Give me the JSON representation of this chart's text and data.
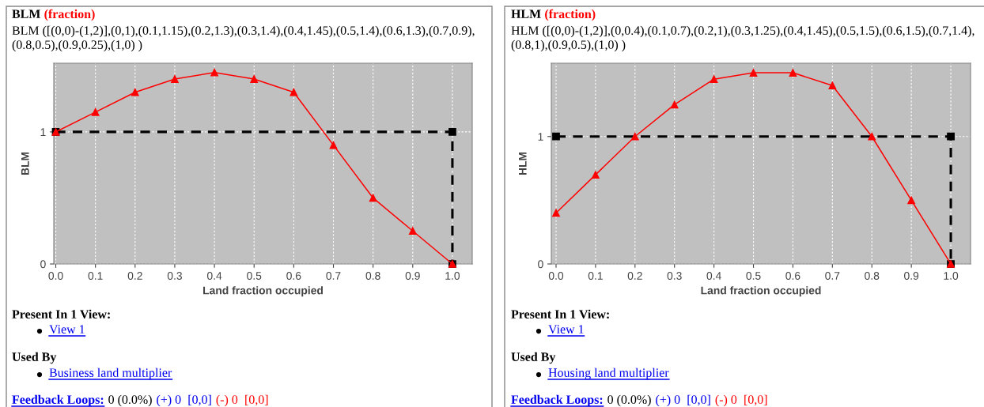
{
  "chart_data": [
    {
      "type": "line",
      "title": "BLM",
      "subtitle": "(fraction)",
      "xlabel": "Land fraction occupied",
      "ylabel": "BLM",
      "series": [
        {
          "color": "#000000",
          "x": [
            0,
            1,
            1
          ],
          "values": [
            1,
            1,
            0
          ],
          "marker": "square",
          "line_style": "dashed"
        },
        {
          "color": "#ff0000",
          "x": [
            0,
            0.1,
            0.2,
            0.3,
            0.4,
            0.5,
            0.6,
            0.7,
            0.8,
            0.9,
            1
          ],
          "values": [
            1,
            1.15,
            1.3,
            1.4,
            1.45,
            1.4,
            1.3,
            0.9,
            0.5,
            0.25,
            0
          ],
          "marker": "triangle",
          "line_style": "solid"
        }
      ],
      "xlim": [
        -0.005,
        1.05
      ],
      "ylim": [
        0,
        1.52
      ],
      "xticks": [
        {
          "value": 0,
          "label": "0.0"
        },
        {
          "value": 0.1,
          "label": "0.1"
        },
        {
          "value": 0.2,
          "label": "0.2"
        },
        {
          "value": 0.3,
          "label": "0.3"
        },
        {
          "value": 0.4,
          "label": "0.4"
        },
        {
          "value": 0.5,
          "label": "0.5"
        },
        {
          "value": 0.6,
          "label": "0.6"
        },
        {
          "value": 0.7,
          "label": "0.7"
        },
        {
          "value": 0.8,
          "label": "0.8"
        },
        {
          "value": 0.9,
          "label": "0.9"
        },
        {
          "value": 1,
          "label": "1.0"
        }
      ],
      "yticks": [
        0,
        1
      ],
      "grid": true,
      "annotations": [
        "BLM ([(0,0)-(1,2)],(0,1),(0.1,1.15),(0.2,1.3),(0.3,1.4),(0.4,1.45),(0.5,1.4),(0.6,1.3),(0.7,0.9),",
        "(0.8,0.5),(0.9,0.25),(1,0) )",
        "Present In 1 View:",
        "View 1",
        "Used By",
        "Business land multiplier",
        "Feedback Loops:",
        "0 (0.0%)",
        "(+) 0",
        "[0,0]",
        "(-) 0",
        "[0,0]"
      ]
    },
    {
      "type": "line",
      "title": "HLM",
      "subtitle": "(fraction)",
      "xlabel": "Land fraction occupied",
      "ylabel": "HLM",
      "series": [
        {
          "color": "#000000",
          "x": [
            0,
            1,
            1
          ],
          "values": [
            1,
            1,
            0
          ],
          "marker": "square",
          "line_style": "dashed"
        },
        {
          "color": "#ff0000",
          "x": [
            0,
            0.1,
            0.2,
            0.3,
            0.4,
            0.5,
            0.6,
            0.7,
            0.8,
            0.9,
            1
          ],
          "values": [
            0.4,
            0.7,
            1,
            1.25,
            1.45,
            1.5,
            1.5,
            1.4,
            1,
            0.5,
            0
          ],
          "marker": "triangle",
          "line_style": "solid"
        }
      ],
      "xlim": [
        -0.012,
        1.05
      ],
      "ylim": [
        0,
        1.575
      ],
      "xticks": [
        {
          "value": 0,
          "label": "0.0"
        },
        {
          "value": 0.1,
          "label": "0.1"
        },
        {
          "value": 0.2,
          "label": "0.2"
        },
        {
          "value": 0.3,
          "label": "0.3"
        },
        {
          "value": 0.4,
          "label": "0.4"
        },
        {
          "value": 0.5,
          "label": "0.5"
        },
        {
          "value": 0.6,
          "label": "0.6"
        },
        {
          "value": 0.7,
          "label": "0.7"
        },
        {
          "value": 0.8,
          "label": "0.8"
        },
        {
          "value": 0.9,
          "label": "0.9"
        },
        {
          "value": 1,
          "label": "1.0"
        }
      ],
      "yticks": [
        0,
        1
      ],
      "grid": true,
      "annotations": [
        "HLM ([(0,0)-(1,2)],(0,0.4),(0.1,0.7),(0.2,1),(0.3,1.25),(0.4,1.45),(0.5,1.5),(0.6,1.5),(0.7,1.4),",
        "(0.8,1),(0.9,0.5),(1,0) )",
        "Present In 1 View:",
        "View 1",
        "Used By",
        "Housing land multiplier",
        "Feedback Loops:",
        "0 (0.0%)",
        "(+) 0",
        "[0,0]",
        "(-) 0",
        "[0,0]"
      ]
    }
  ]
}
